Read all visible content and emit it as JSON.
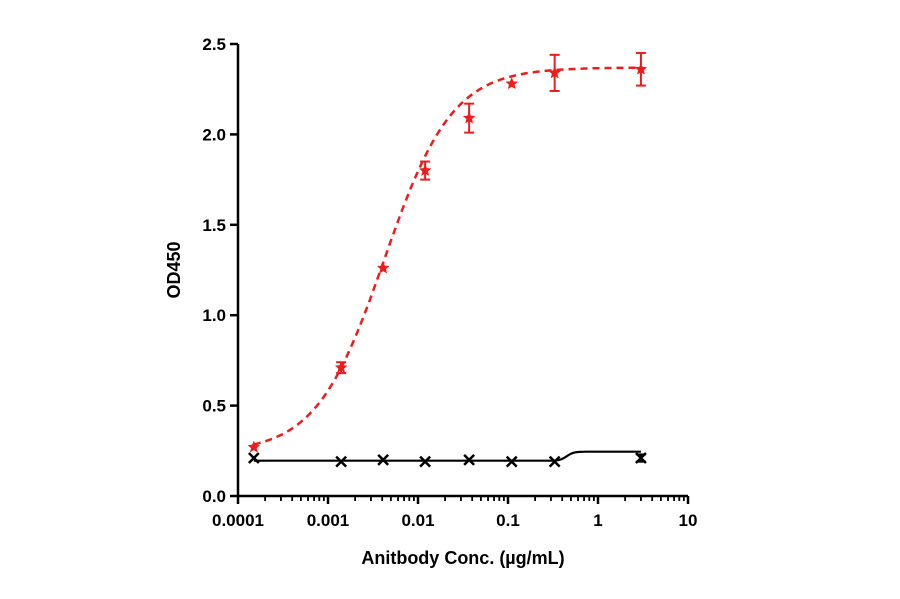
{
  "chart_data": {
    "type": "scatter",
    "title": "",
    "xlabel": "Anitbody Conc. (µg/mL)",
    "ylabel": "OD450",
    "xscale": "log",
    "xlim": [
      0.0001,
      10
    ],
    "ylim": [
      0.0,
      2.5
    ],
    "grid": false,
    "legend": "none",
    "x_ticks": [
      "0.0001",
      "0.001",
      "0.01",
      "0.1",
      "1",
      "10"
    ],
    "y_ticks": [
      "0.0",
      "0.5",
      "1.0",
      "1.5",
      "2.0",
      "2.5"
    ],
    "series": [
      {
        "marker": "star",
        "color": "#ee1c1c",
        "fit_line": "dashed",
        "x": [
          0.00015,
          0.0014,
          0.0041,
          0.012,
          0.037,
          0.11,
          0.33,
          3.0
        ],
        "y": [
          0.27,
          0.71,
          1.26,
          1.8,
          2.09,
          2.28,
          2.34,
          2.36
        ],
        "error": [
          0.0,
          0.03,
          0.0,
          0.05,
          0.08,
          0.0,
          0.1,
          0.09
        ]
      },
      {
        "marker": "x",
        "color": "#000000",
        "fit_line": "solid",
        "x": [
          0.00015,
          0.0014,
          0.0041,
          0.012,
          0.037,
          0.11,
          0.33,
          3.0
        ],
        "y": [
          0.21,
          0.19,
          0.2,
          0.19,
          0.2,
          0.19,
          0.19,
          0.21
        ],
        "error": [
          0.0,
          0.0,
          0.0,
          0.0,
          0.0,
          0.0,
          0.0,
          0.02
        ]
      }
    ]
  }
}
